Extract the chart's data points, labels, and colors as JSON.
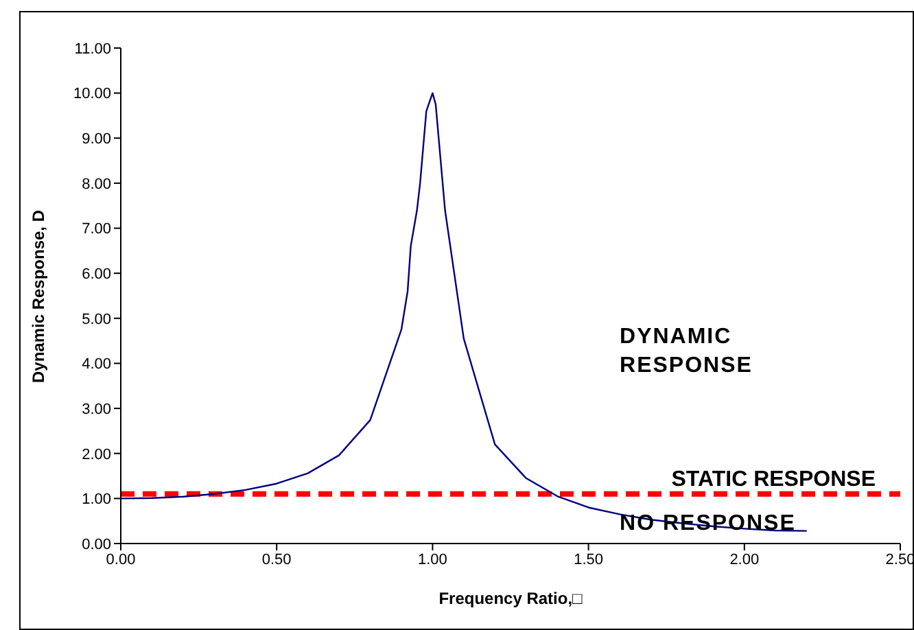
{
  "chart_data": {
    "type": "line",
    "xlabel": "Frequency Ratio,□",
    "ylabel": "Dynamic Response, D",
    "x": [
      0,
      0.1,
      0.2,
      0.3,
      0.4,
      0.5,
      0.6,
      0.7,
      0.8,
      0.9,
      0.92,
      0.93,
      0.95,
      0.96,
      0.98,
      1.0,
      1.01,
      1.04,
      1.1,
      1.2,
      1.3,
      1.4,
      1.5,
      1.6,
      1.7,
      1.8,
      1.9,
      2.0,
      2.1,
      2.2
    ],
    "series": [
      {
        "color": "#000080",
        "values": [
          1.0,
          1.01,
          1.04,
          1.1,
          1.19,
          1.33,
          1.56,
          1.96,
          2.74,
          4.75,
          5.6,
          6.6,
          7.4,
          8.0,
          9.6,
          10.0,
          9.75,
          7.4,
          4.55,
          2.2,
          1.45,
          1.05,
          0.8,
          0.65,
          0.53,
          0.45,
          0.38,
          0.33,
          0.29,
          0.28
        ]
      }
    ],
    "xlim": [
      0,
      2.5
    ],
    "xticks": [
      {
        "value": 0,
        "label": "0.00"
      },
      {
        "value": 0.5,
        "label": "0.50"
      },
      {
        "value": 1,
        "label": "1.00"
      },
      {
        "value": 1.5,
        "label": "1.50"
      },
      {
        "value": 2,
        "label": "2.00"
      },
      {
        "value": 2.5,
        "label": "2.50"
      }
    ],
    "ylim": [
      0,
      11
    ],
    "yticks": [
      {
        "value": 0,
        "label": "0.00"
      },
      {
        "value": 1,
        "label": "1.00"
      },
      {
        "value": 2,
        "label": "2.00"
      },
      {
        "value": 3,
        "label": "3.00"
      },
      {
        "value": 4,
        "label": "4.00"
      },
      {
        "value": 5,
        "label": "5.00"
      },
      {
        "value": 6,
        "label": "6.00"
      },
      {
        "value": 7,
        "label": "7.00"
      },
      {
        "value": 8,
        "label": "8.00"
      },
      {
        "value": 9,
        "label": "9.00"
      },
      {
        "value": 10,
        "label": "10.00"
      },
      {
        "value": 11,
        "label": "11.00"
      }
    ],
    "ref_lines": [
      {
        "axis": "y",
        "value": 1.1,
        "label": "STATIC  RESPONSE",
        "color": "#ff0000",
        "line_style": "dashed"
      }
    ],
    "annotations": [
      "DYNAMIC RESPONSE",
      "NO RESPONSE"
    ],
    "grid": false,
    "marker": "none",
    "line_style": "solid"
  }
}
